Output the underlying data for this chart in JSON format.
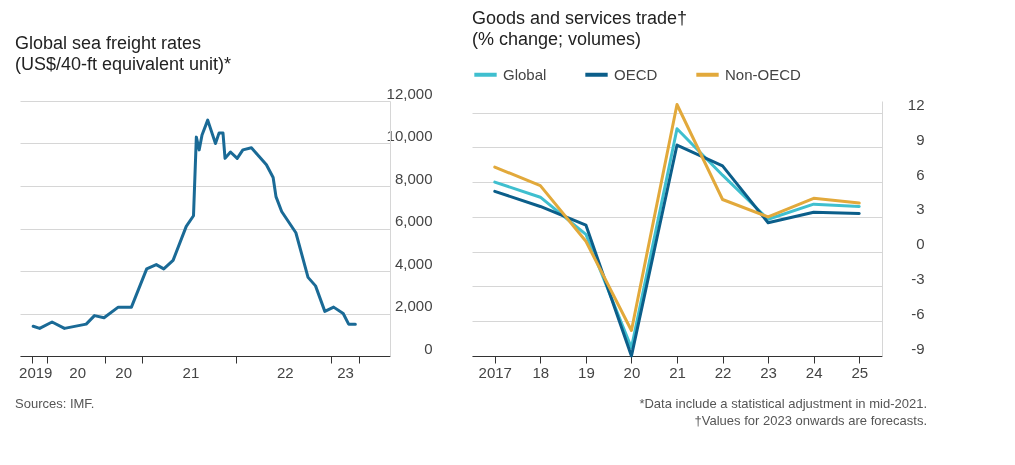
{
  "chart_data": [
    {
      "type": "line",
      "title": "Global sea freight rates",
      "subtitle": "(US$/40-ft equivalent unit)*",
      "color": "#1a6a96",
      "x": [
        "2019-11-07",
        "2019-12-02",
        "2020-01-19",
        "2020-03-07",
        "2020-05-30",
        "2020-07-01",
        "2020-08-07",
        "2020-10-01",
        "2020-11-21",
        "2021-01-19",
        "2021-02-25",
        "2021-03-26",
        "2021-05-01",
        "2021-06-21",
        "2021-07-19",
        "2021-07-30",
        "2021-08-10",
        "2021-08-21",
        "2021-09-12",
        "2021-10-12",
        "2021-10-26",
        "2021-11-10",
        "2021-11-18",
        "2021-12-09",
        "2022-01-04",
        "2022-01-26",
        "2022-02-28",
        "2022-03-29",
        "2022-04-27",
        "2022-05-23",
        "2022-06-03",
        "2022-06-25",
        "2022-08-19",
        "2022-10-05",
        "2022-11-03",
        "2022-12-09",
        "2023-01-12",
        "2023-02-18",
        "2023-03-11",
        "2023-04-06"
      ],
      "values": [
        1400,
        1300,
        1600,
        1300,
        1500,
        1900,
        1800,
        2300,
        2300,
        4100,
        4300,
        4100,
        4500,
        6100,
        6600,
        10300,
        9700,
        10400,
        11100,
        10000,
        10500,
        10500,
        9300,
        9600,
        9300,
        9700,
        9800,
        9400,
        9000,
        8400,
        7500,
        6800,
        5800,
        3700,
        3300,
        2100,
        2300,
        2000,
        1500,
        1500
      ],
      "xlim": [
        "2019-09-17",
        "2023-08-18"
      ],
      "xticks": [
        {
          "value": "2019-11-01",
          "label": null
        },
        {
          "value": "2019-11-15",
          "label": "2019"
        },
        {
          "value": "2020-01-01",
          "label": null
        },
        {
          "value": "2020-04-25",
          "label": "20"
        },
        {
          "value": "2020-08-10",
          "label": null
        },
        {
          "value": "2020-10-20",
          "label": "20"
        },
        {
          "value": "2021-01-01",
          "label": null
        },
        {
          "value": "2021-07-07",
          "label": "21"
        },
        {
          "value": "2022-01-01",
          "label": null
        },
        {
          "value": "2022-07-07",
          "label": "22"
        },
        {
          "value": "2023-01-01",
          "label": null
        },
        {
          "value": "2023-02-25",
          "label": "23"
        },
        {
          "value": "2023-04-20",
          "label": null
        }
      ],
      "ylim": [
        0,
        12000
      ],
      "yticks": [
        0,
        {
          "value": 2000,
          "label": "2,000"
        },
        {
          "value": 4000,
          "label": "4,000"
        },
        {
          "value": 6000,
          "label": "6,000"
        },
        {
          "value": 8000,
          "label": "8,000"
        },
        {
          "value": 10000,
          "label": "10,000"
        },
        {
          "value": 12000,
          "label": "12,000"
        }
      ],
      "grid": "y",
      "annotations": [
        "Sources: IMF."
      ]
    },
    {
      "type": "line",
      "title": "Goods and services trade†",
      "subtitle": "(% change; volumes)",
      "categories": [
        "2017",
        "18",
        "19",
        "20",
        "21",
        "22",
        "23",
        "24",
        "25"
      ],
      "series": [
        {
          "name": "Global",
          "color": "#3fbfcf",
          "values": [
            6.0,
            4.7,
            1.5,
            -8.3,
            10.6,
            6.6,
            2.8,
            4.1,
            3.9
          ]
        },
        {
          "name": "OECD",
          "color": "#0b5e8a",
          "values": [
            5.2,
            3.9,
            2.3,
            -9.0,
            9.2,
            7.4,
            2.5,
            3.4,
            3.3
          ]
        },
        {
          "name": "Non-OECD",
          "color": "#e2a93b",
          "values": [
            7.3,
            5.7,
            0.9,
            -6.8,
            12.7,
            4.5,
            3.0,
            4.6,
            4.2
          ]
        }
      ],
      "ylim": [
        -9,
        13
      ],
      "yticks": [
        -9,
        -6,
        -3,
        0,
        3,
        6,
        9,
        12
      ],
      "grid": "y",
      "legend": "top",
      "annotations": [
        "*Data include a statistical adjustment in mid-2021.",
        "†Values for 2023 onwards are forecasts."
      ]
    }
  ]
}
